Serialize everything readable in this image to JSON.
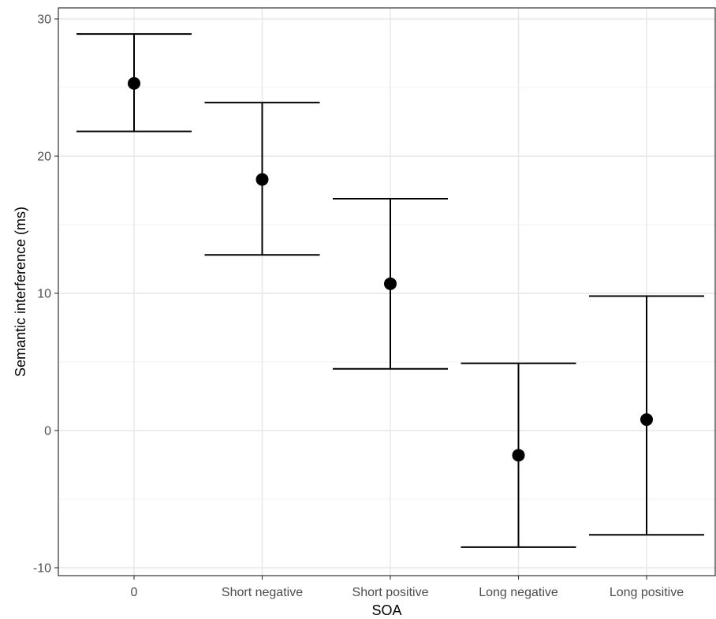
{
  "chart_data": {
    "type": "scatter",
    "title": "",
    "xlabel": "SOA",
    "ylabel": "Semantic interference (ms)",
    "categories": [
      "0",
      "Short negative",
      "Short positive",
      "Long negative",
      "Long positive"
    ],
    "series": [
      {
        "values": [
          25.3,
          18.3,
          10.7,
          -1.8,
          0.8
        ],
        "lower": [
          21.8,
          12.8,
          4.5,
          -8.5,
          -7.6
        ],
        "upper": [
          28.9,
          23.9,
          16.9,
          4.9,
          9.8
        ]
      }
    ],
    "ylim": [
      -10,
      30
    ],
    "yticks": [
      -10,
      0,
      10,
      20,
      30
    ],
    "grid": true,
    "legend": "none"
  }
}
